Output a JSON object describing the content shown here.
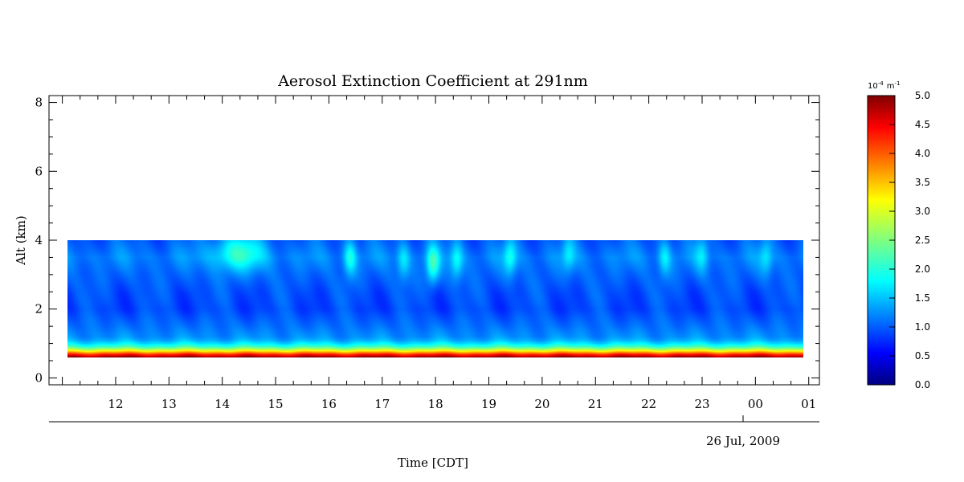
{
  "chart_data": {
    "type": "heatmap",
    "title": "Aerosol Extinction Coefficient at 291nm",
    "ylabel": "Alt (km)",
    "xlabel": "Time [CDT]",
    "date_label": "26 Jul, 2009",
    "ylim": [
      -0.2,
      8.2
    ],
    "y_ticks": [
      0,
      2,
      4,
      6,
      8
    ],
    "x_range_hours": [
      10.75,
      25.2
    ],
    "x_ticks": [
      {
        "label": "12",
        "hour": 12
      },
      {
        "label": "13",
        "hour": 13
      },
      {
        "label": "14",
        "hour": 14
      },
      {
        "label": "15",
        "hour": 15
      },
      {
        "label": "16",
        "hour": 16
      },
      {
        "label": "17",
        "hour": 17
      },
      {
        "label": "18",
        "hour": 18
      },
      {
        "label": "19",
        "hour": 19
      },
      {
        "label": "20",
        "hour": 20
      },
      {
        "label": "21",
        "hour": 21
      },
      {
        "label": "22",
        "hour": 22
      },
      {
        "label": "23",
        "hour": 23
      },
      {
        "label": "00",
        "hour": 24
      },
      {
        "label": "01",
        "hour": 25
      }
    ],
    "data_extent": {
      "time_start": 11.1,
      "time_end": 24.9,
      "alt_min": 0.6,
      "alt_max": 4.0
    },
    "colorbar": {
      "unit_base": "10",
      "unit_exp": "-4",
      "unit_m": "m",
      "unit_m_exp": "-1",
      "min": 0.0,
      "max": 5.0,
      "tick_labels": [
        "0.0",
        "0.5",
        "1.0",
        "1.5",
        "2.0",
        "2.5",
        "3.0",
        "3.5",
        "4.0",
        "4.5",
        "5.0"
      ]
    },
    "profile_alt_km": [
      0.6,
      0.7,
      0.8,
      0.9,
      1.0,
      1.1,
      1.2,
      1.5,
      2.0,
      2.5,
      3.0,
      3.5,
      4.0
    ],
    "profile_value": [
      5.0,
      4.2,
      3.1,
      2.2,
      1.7,
      1.4,
      1.25,
      1.1,
      0.9,
      0.95,
      1.05,
      1.2,
      1.0
    ],
    "plumes": [
      {
        "time": 14.3,
        "alt": 3.65,
        "value": 2.0
      },
      {
        "time": 16.4,
        "alt": 3.5,
        "value": 1.9
      },
      {
        "time": 17.4,
        "alt": 3.4,
        "value": 1.7
      },
      {
        "time": 17.95,
        "alt": 3.3,
        "value": 2.1
      },
      {
        "time": 18.4,
        "alt": 3.4,
        "value": 1.8
      },
      {
        "time": 19.4,
        "alt": 3.5,
        "value": 1.8
      },
      {
        "time": 20.5,
        "alt": 3.6,
        "value": 1.6
      },
      {
        "time": 22.3,
        "alt": 3.5,
        "value": 1.7
      },
      {
        "time": 23.0,
        "alt": 3.6,
        "value": 1.6
      },
      {
        "time": 24.2,
        "alt": 3.5,
        "value": 1.6
      }
    ]
  }
}
